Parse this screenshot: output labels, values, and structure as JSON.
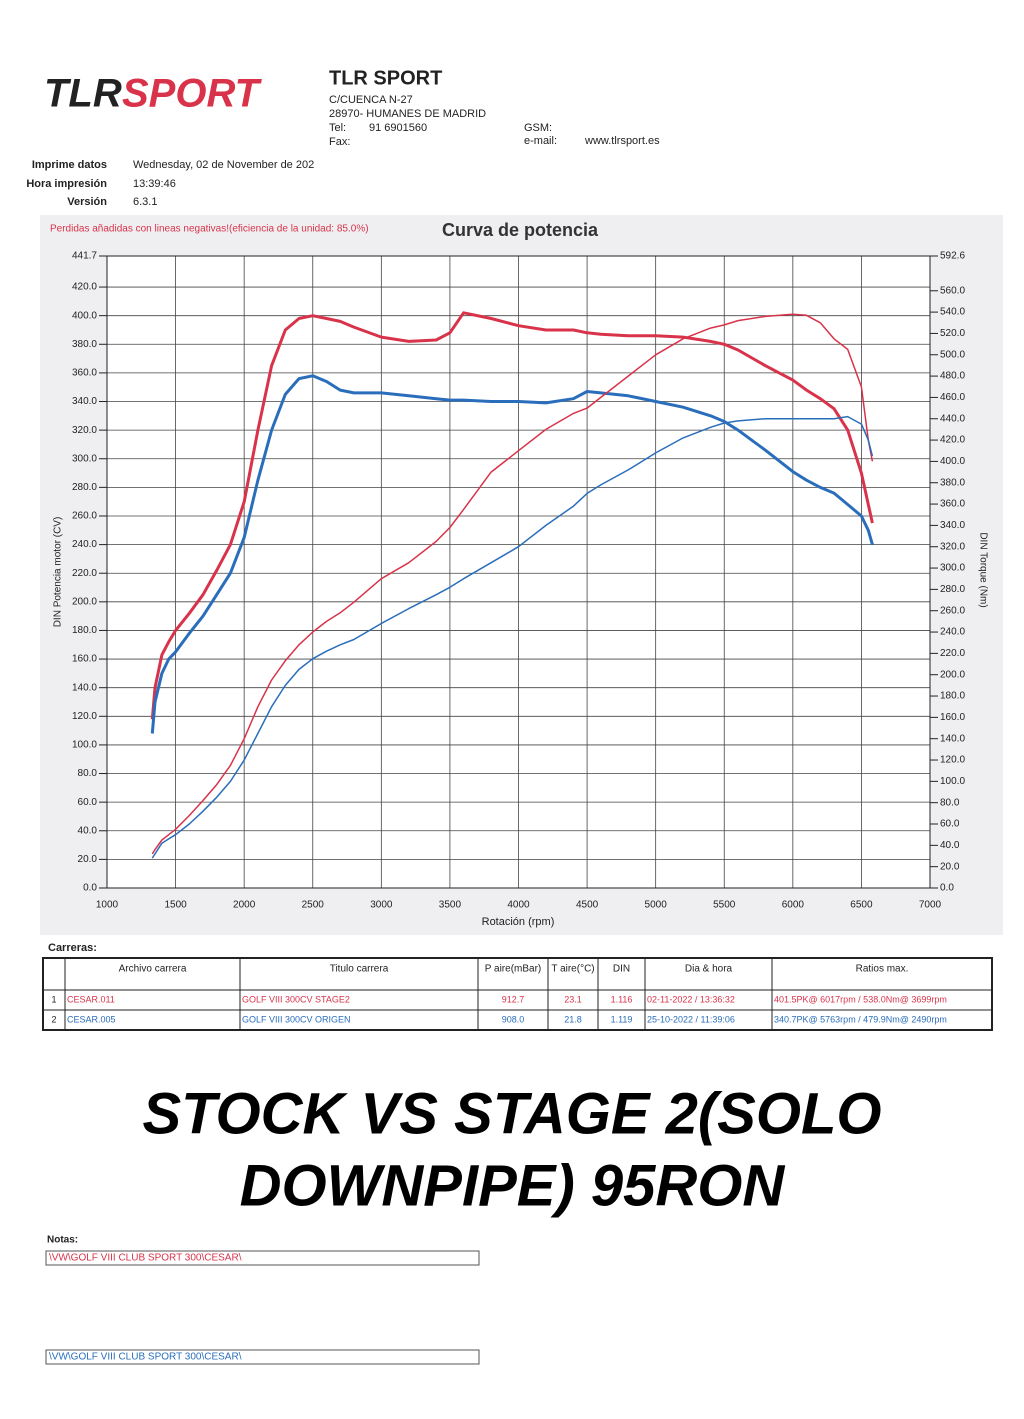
{
  "logo": [
    "TLR",
    "SPORT"
  ],
  "header": {
    "company": "TLR SPORT",
    "address": [
      "C/CUENCA N-27",
      "28970- HUMANES DE MADRID"
    ],
    "tel_label": "Tel:",
    "tel": "91 6901560",
    "fax_label": "Fax:",
    "gsm_label": "GSM:",
    "email_label": "e-mail:",
    "web": "www.tlrsport.es"
  },
  "info": {
    "labels": [
      "Imprime datos",
      "Hora impresión",
      "Versión"
    ],
    "values": [
      "Wednesday, 02 de November de 202",
      "13:39:46",
      "6.3.1"
    ]
  },
  "chart_data": {
    "type": "line",
    "note": "Perdidas añadidas con lineas negativas!(eficiencia de la unidad: 85.0%)",
    "title": "Curva de potencia",
    "ylabel": "DIN Potencia motor (CV)",
    "y2label": "DIN Torque (Nm)",
    "xlabel": "Rotación (rpm)",
    "grid": true,
    "xlim": [
      1000,
      7000
    ],
    "xticks": [
      1000,
      1500,
      2000,
      2500,
      3000,
      3500,
      4000,
      4500,
      5000,
      5500,
      6000,
      6500,
      7000
    ],
    "ylim": [
      0,
      441.7
    ],
    "yticks": [
      {
        "value": 0,
        "label": "0.0"
      },
      {
        "value": 20,
        "label": "20.0"
      },
      {
        "value": 40,
        "label": "40.0"
      },
      {
        "value": 60,
        "label": "60.0"
      },
      {
        "value": 80,
        "label": "80.0"
      },
      {
        "value": 100,
        "label": "100.0"
      },
      {
        "value": 120,
        "label": "120.0"
      },
      {
        "value": 140,
        "label": "140.0"
      },
      {
        "value": 160,
        "label": "160.0"
      },
      {
        "value": 180,
        "label": "180.0"
      },
      {
        "value": 200,
        "label": "200.0"
      },
      {
        "value": 220,
        "label": "220.0"
      },
      {
        "value": 240,
        "label": "240.0"
      },
      {
        "value": 260,
        "label": "260.0"
      },
      {
        "value": 280,
        "label": "280.0"
      },
      {
        "value": 300,
        "label": "300.0"
      },
      {
        "value": 320,
        "label": "320.0"
      },
      {
        "value": 340,
        "label": "340.0"
      },
      {
        "value": 360,
        "label": "360.0"
      },
      {
        "value": 380,
        "label": "380.0"
      },
      {
        "value": 400,
        "label": "400.0"
      },
      {
        "value": 420,
        "label": "420.0"
      },
      {
        "value": 441.7,
        "label": "441.7"
      }
    ],
    "y2lim": [
      0,
      592.6
    ],
    "y2ticks": [
      {
        "value": 0,
        "label": "0.0"
      },
      {
        "value": 20,
        "label": "20.0"
      },
      {
        "value": 40,
        "label": "40.0"
      },
      {
        "value": 60,
        "label": "60.0"
      },
      {
        "value": 80,
        "label": "80.0"
      },
      {
        "value": 100,
        "label": "100.0"
      },
      {
        "value": 120,
        "label": "120.0"
      },
      {
        "value": 140,
        "label": "140.0"
      },
      {
        "value": 160,
        "label": "160.0"
      },
      {
        "value": 180,
        "label": "180.0"
      },
      {
        "value": 200,
        "label": "200.0"
      },
      {
        "value": 220,
        "label": "220.0"
      },
      {
        "value": 240,
        "label": "240.0"
      },
      {
        "value": 260,
        "label": "260.0"
      },
      {
        "value": 280,
        "label": "280.0"
      },
      {
        "value": 300,
        "label": "300.0"
      },
      {
        "value": 320,
        "label": "320.0"
      },
      {
        "value": 340,
        "label": "340.0"
      },
      {
        "value": 360,
        "label": "360.0"
      },
      {
        "value": 380,
        "label": "380.0"
      },
      {
        "value": 400,
        "label": "400.0"
      },
      {
        "value": 420,
        "label": "420.0"
      },
      {
        "value": 440,
        "label": "440.0"
      },
      {
        "value": 460,
        "label": "460.0"
      },
      {
        "value": 480,
        "label": "480.0"
      },
      {
        "value": 500,
        "label": "500.0"
      },
      {
        "value": 520,
        "label": "520.0"
      },
      {
        "value": 540,
        "label": "540.0"
      },
      {
        "value": 560,
        "label": "560.0"
      },
      {
        "value": 592.6,
        "label": "592.6"
      }
    ],
    "x": [
      1330,
      1350,
      1400,
      1450,
      1500,
      1600,
      1700,
      1800,
      1900,
      2000,
      2100,
      2200,
      2300,
      2400,
      2500,
      2600,
      2700,
      2800,
      3000,
      3200,
      3400,
      3500,
      3600,
      3800,
      4000,
      4200,
      4400,
      4500,
      4600,
      4800,
      5000,
      5200,
      5400,
      5500,
      5600,
      5800,
      6000,
      6100,
      6200,
      6300,
      6400,
      6500,
      6550,
      6580
    ],
    "series": [
      {
        "color": "#d8334a",
        "width": 3,
        "values": [
          118,
          140,
          163,
          172,
          180,
          192,
          205,
          222,
          240,
          270,
          320,
          365,
          390,
          398,
          400,
          398,
          396,
          392,
          385,
          382,
          383,
          388,
          402,
          398,
          393,
          390,
          390,
          388,
          387,
          386,
          386,
          385,
          382,
          380,
          376,
          365,
          355,
          348,
          342,
          335,
          320,
          290,
          268,
          255
        ]
      },
      {
        "color": "#2a6ebb",
        "width": 3,
        "values": [
          108,
          130,
          150,
          160,
          165,
          178,
          190,
          205,
          220,
          245,
          285,
          320,
          345,
          356,
          358,
          354,
          348,
          346,
          346,
          344,
          342,
          341,
          341,
          340,
          340,
          339,
          342,
          347,
          346,
          344,
          340,
          336,
          330,
          326,
          320,
          306,
          291,
          285,
          280,
          276,
          268,
          260,
          250,
          240
        ]
      },
      {
        "color": "#d8334a",
        "width": 1.5,
        "axis": "y2",
        "values": [
          32,
          36,
          45,
          50,
          55,
          68,
          82,
          97,
          115,
          140,
          170,
          195,
          213,
          228,
          240,
          250,
          258,
          268,
          290,
          305,
          325,
          338,
          355,
          390,
          410,
          430,
          445,
          450,
          460,
          480,
          500,
          515,
          525,
          528,
          532,
          536,
          538,
          537,
          530,
          515,
          505,
          470,
          420,
          400
        ]
      },
      {
        "color": "#2a6ebb",
        "width": 1.5,
        "axis": "y2",
        "values": [
          28,
          32,
          42,
          46,
          50,
          60,
          72,
          85,
          100,
          120,
          145,
          170,
          190,
          205,
          215,
          222,
          228,
          233,
          248,
          262,
          275,
          282,
          290,
          305,
          320,
          340,
          358,
          370,
          378,
          392,
          408,
          422,
          432,
          436,
          438,
          440,
          440,
          440,
          440,
          440,
          442,
          435,
          420,
          405
        ]
      }
    ]
  },
  "runs_label": "Carreras:",
  "table": {
    "header": [
      "Archivo carrera",
      "Titulo carrera",
      "P aire(mBar)",
      "T aire(°C)",
      "DIN",
      "Dia & hora",
      "Ratios max."
    ],
    "rows": [
      [
        "1",
        "CESAR.011",
        "GOLF VIII 300CV STAGE2",
        "912.7",
        "23.1",
        "1.116",
        "02-11-2022 / 13:36:32",
        "401.5PK@ 6017rpm / 538.0Nm@ 3699rpm"
      ],
      [
        "2",
        "CESAR.005",
        "GOLF VIII 300CV ORIGEN",
        "908.0",
        "21.8",
        "1.119",
        "25-10-2022 / 11:39:06",
        "340.7PK@ 5763rpm / 479.9Nm@ 2490rpm"
      ]
    ]
  },
  "headline": [
    "STOCK VS STAGE 2(SOLO",
    "DOWNPIPE) 95RON"
  ],
  "notes": {
    "label": "Notas:",
    "lines": [
      "\\VW\\GOLF VIII CLUB SPORT 300\\CESAR\\",
      "\\VW\\GOLF VIII CLUB SPORT 300\\CESAR\\"
    ]
  }
}
